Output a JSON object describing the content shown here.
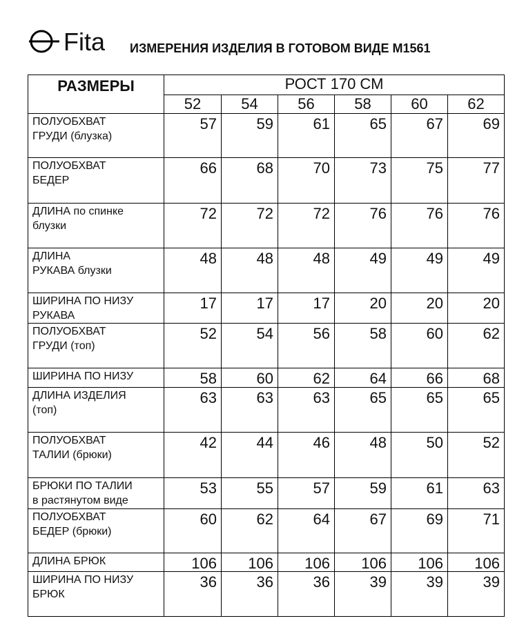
{
  "header": {
    "logo": "Fita",
    "title": "ИЗМЕРЕНИЯ ИЗДЕЛИЯ В ГОТОВОМ ВИДЕ М1561"
  },
  "table": {
    "corner": "РАЗМЕРЫ",
    "group": "РОСТ 170 СМ",
    "sizes": [
      52,
      54,
      56,
      58,
      60,
      62
    ],
    "rows": [
      {
        "label": "ПОЛУОБХВАТ\nГРУДИ (блузка)",
        "values": [
          57,
          59,
          61,
          65,
          67,
          69
        ]
      },
      {
        "label": "ПОЛУОБХВАТ\nБЕДЕР",
        "values": [
          66,
          68,
          70,
          73,
          75,
          77
        ]
      },
      {
        "label": "ДЛИНА по спинке\nблузки",
        "values": [
          72,
          72,
          72,
          76,
          76,
          76
        ]
      },
      {
        "label": "ДЛИНА\nРУКАВА блузки",
        "values": [
          48,
          48,
          48,
          49,
          49,
          49
        ]
      },
      {
        "label": "ШИРИНА ПО НИЗУ\nРУКАВА",
        "values": [
          17,
          17,
          17,
          20,
          20,
          20
        ]
      },
      {
        "label": "ПОЛУОБХВАТ\nГРУДИ (топ)",
        "values": [
          52,
          54,
          56,
          58,
          60,
          62
        ]
      },
      {
        "label": "ШИРИНА ПО НИЗУ",
        "values": [
          58,
          60,
          62,
          64,
          66,
          68
        ]
      },
      {
        "label": "ДЛИНА ИЗДЕЛИЯ\n(топ)",
        "values": [
          63,
          63,
          63,
          65,
          65,
          65
        ]
      },
      {
        "label": "ПОЛУОБХВАТ\nТАЛИИ (брюки)",
        "values": [
          42,
          44,
          46,
          48,
          50,
          52
        ]
      },
      {
        "label": "БРЮКИ ПО ТАЛИИ\nв растянутом виде",
        "values": [
          53,
          55,
          57,
          59,
          61,
          63
        ]
      },
      {
        "label": "ПОЛУОБХВАТ\nБЕДЕР (брюки)",
        "values": [
          60,
          62,
          64,
          67,
          69,
          71
        ]
      },
      {
        "label": "ДЛИНА БРЮК",
        "values": [
          106,
          106,
          106,
          106,
          106,
          106
        ]
      },
      {
        "label": "ШИРИНА ПО НИЗУ\nБРЮК",
        "values": [
          36,
          36,
          36,
          39,
          39,
          39
        ]
      }
    ]
  }
}
